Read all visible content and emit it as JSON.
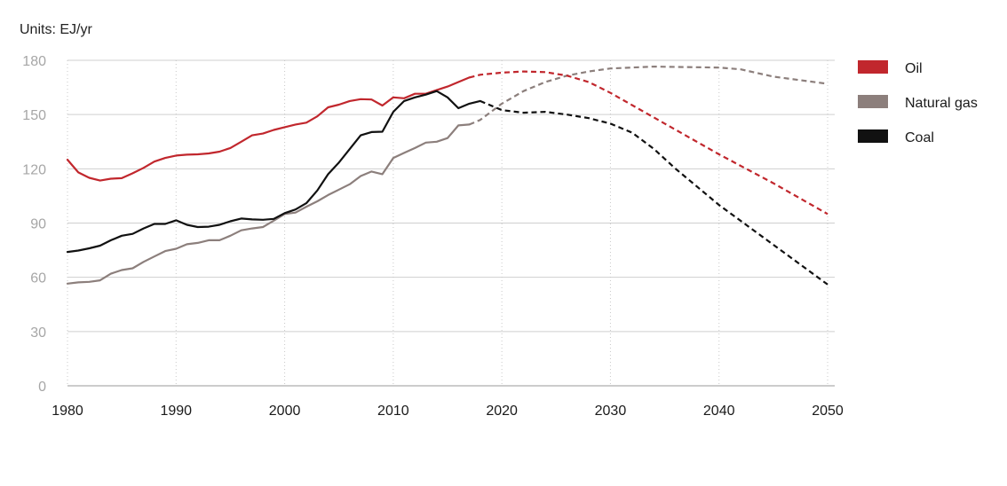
{
  "chart_data": {
    "type": "line",
    "units_label": "Units: EJ/yr",
    "ylim": [
      0,
      180
    ],
    "xlim": [
      1980,
      2050
    ],
    "y_ticks": [
      0,
      30,
      60,
      90,
      120,
      150,
      180
    ],
    "x_ticks": [
      1980,
      1990,
      2000,
      2010,
      2020,
      2030,
      2040,
      2050
    ],
    "grid": {
      "horizontal": true,
      "vertical_dotted": true
    },
    "legend_position": "right",
    "series": [
      {
        "name": "Oil",
        "color": "#c1272d",
        "historical": [
          [
            1980,
            125
          ],
          [
            1981,
            118
          ],
          [
            1982,
            115
          ],
          [
            1983,
            113.5
          ],
          [
            1984,
            114.5
          ],
          [
            1985,
            114.8
          ],
          [
            1986,
            117.5
          ],
          [
            1987,
            120.5
          ],
          [
            1988,
            124
          ],
          [
            1989,
            126
          ],
          [
            1990,
            127.3
          ],
          [
            1991,
            127.8
          ],
          [
            1992,
            128
          ],
          [
            1993,
            128.5
          ],
          [
            1994,
            129.5
          ],
          [
            1995,
            131.5
          ],
          [
            1996,
            135
          ],
          [
            1997,
            138.5
          ],
          [
            1998,
            139.5
          ],
          [
            1999,
            141.5
          ],
          [
            2000,
            143
          ],
          [
            2001,
            144.5
          ],
          [
            2002,
            145.5
          ],
          [
            2003,
            149
          ],
          [
            2004,
            154
          ],
          [
            2005,
            155.5
          ],
          [
            2006,
            157.5
          ],
          [
            2007,
            158.5
          ],
          [
            2008,
            158.3
          ],
          [
            2009,
            155
          ],
          [
            2010,
            159.5
          ],
          [
            2011,
            159
          ],
          [
            2012,
            161.5
          ],
          [
            2013,
            161.5
          ],
          [
            2014,
            163.5
          ],
          [
            2015,
            165.5
          ],
          [
            2016,
            168
          ],
          [
            2017,
            170.5
          ]
        ],
        "projection": [
          [
            2017,
            170.5
          ],
          [
            2018,
            172
          ],
          [
            2020,
            173.2
          ],
          [
            2022,
            173.8
          ],
          [
            2024,
            173.5
          ],
          [
            2026,
            171.5
          ],
          [
            2028,
            168
          ],
          [
            2030,
            162
          ],
          [
            2035,
            145
          ],
          [
            2040,
            128
          ],
          [
            2045,
            112
          ],
          [
            2050,
            95
          ]
        ]
      },
      {
        "name": "Natural gas",
        "color": "#8c7f7c",
        "historical": [
          [
            1980,
            56.5
          ],
          [
            1981,
            57.2
          ],
          [
            1982,
            57.5
          ],
          [
            1983,
            58.3
          ],
          [
            1984,
            62
          ],
          [
            1985,
            64
          ],
          [
            1986,
            65
          ],
          [
            1987,
            68.5
          ],
          [
            1988,
            71.5
          ],
          [
            1989,
            74.5
          ],
          [
            1990,
            75.8
          ],
          [
            1991,
            78.3
          ],
          [
            1992,
            79
          ],
          [
            1993,
            80.5
          ],
          [
            1994,
            80.5
          ],
          [
            1995,
            83
          ],
          [
            1996,
            86
          ],
          [
            1997,
            87
          ],
          [
            1998,
            87.8
          ],
          [
            1999,
            91.3
          ],
          [
            2000,
            95
          ],
          [
            2001,
            95.8
          ],
          [
            2002,
            99
          ],
          [
            2003,
            102
          ],
          [
            2004,
            105.5
          ],
          [
            2005,
            108.5
          ],
          [
            2006,
            111.5
          ],
          [
            2007,
            116
          ],
          [
            2008,
            118.5
          ],
          [
            2009,
            117
          ],
          [
            2010,
            126
          ],
          [
            2011,
            128.8
          ],
          [
            2012,
            131.5
          ],
          [
            2013,
            134.5
          ],
          [
            2014,
            135
          ],
          [
            2015,
            137
          ],
          [
            2016,
            144
          ],
          [
            2017,
            144.5
          ]
        ],
        "projection": [
          [
            2017,
            144.5
          ],
          [
            2018,
            147
          ],
          [
            2020,
            156
          ],
          [
            2022,
            163
          ],
          [
            2024,
            168
          ],
          [
            2026,
            171.5
          ],
          [
            2028,
            173.8
          ],
          [
            2030,
            175.5
          ],
          [
            2034,
            176.5
          ],
          [
            2040,
            176
          ],
          [
            2042,
            175
          ],
          [
            2045,
            171
          ],
          [
            2050,
            167
          ]
        ]
      },
      {
        "name": "Coal",
        "color": "#111111",
        "historical": [
          [
            1980,
            74
          ],
          [
            1981,
            74.8
          ],
          [
            1982,
            76
          ],
          [
            1983,
            77.5
          ],
          [
            1984,
            80.5
          ],
          [
            1985,
            83
          ],
          [
            1986,
            84
          ],
          [
            1987,
            87
          ],
          [
            1988,
            89.5
          ],
          [
            1989,
            89.5
          ],
          [
            1990,
            91.5
          ],
          [
            1991,
            89
          ],
          [
            1992,
            87.8
          ],
          [
            1993,
            88
          ],
          [
            1994,
            89
          ],
          [
            1995,
            91
          ],
          [
            1996,
            92.5
          ],
          [
            1997,
            92
          ],
          [
            1998,
            91.8
          ],
          [
            1999,
            92.3
          ],
          [
            2000,
            95.5
          ],
          [
            2001,
            97.5
          ],
          [
            2002,
            101
          ],
          [
            2003,
            108
          ],
          [
            2004,
            117
          ],
          [
            2005,
            123.5
          ],
          [
            2006,
            131
          ],
          [
            2007,
            138.5
          ],
          [
            2008,
            140.3
          ],
          [
            2009,
            140.5
          ],
          [
            2010,
            151.5
          ],
          [
            2011,
            157.5
          ],
          [
            2012,
            159.5
          ],
          [
            2013,
            161
          ],
          [
            2014,
            163
          ],
          [
            2015,
            159.5
          ],
          [
            2016,
            153.5
          ],
          [
            2017,
            156
          ],
          [
            2018,
            157.5
          ]
        ],
        "projection": [
          [
            2018,
            157.5
          ],
          [
            2020,
            152.5
          ],
          [
            2022,
            151
          ],
          [
            2024,
            151.5
          ],
          [
            2026,
            150
          ],
          [
            2028,
            148
          ],
          [
            2030,
            145
          ],
          [
            2032,
            140
          ],
          [
            2034,
            131
          ],
          [
            2036,
            120
          ],
          [
            2040,
            100
          ],
          [
            2045,
            78
          ],
          [
            2050,
            56
          ]
        ]
      }
    ]
  }
}
